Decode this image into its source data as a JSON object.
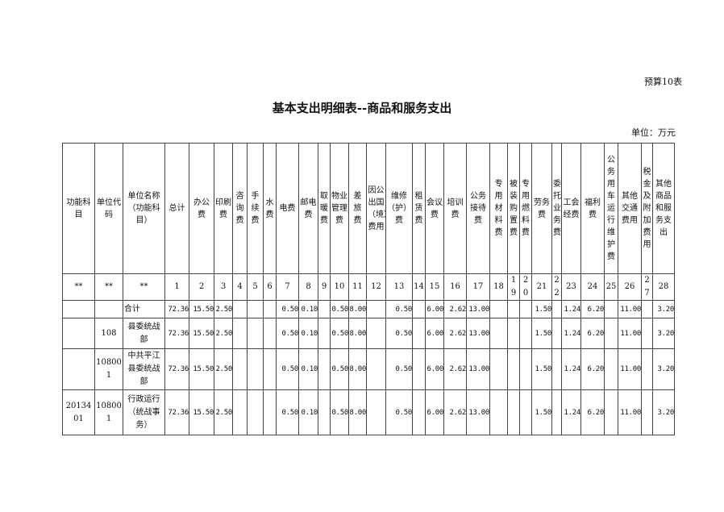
{
  "form_no": "预算10表",
  "title": "基本支出明细表--商品和服务支出",
  "unit": "单位：万元",
  "headers": [
    "功能科目",
    "单位代码",
    "单位名称（功能科目）",
    "总计",
    "办公费",
    "印刷费",
    "咨询费",
    "手续费",
    "水费",
    "电费",
    "邮电费",
    "取暖费",
    "物业管理费",
    "差旅费",
    "因公出国（境）费用",
    "维修（护）费",
    "租赁费",
    "会议费",
    "培训费",
    "公务接待费",
    "专用材料费",
    "被装购置费",
    "专用燃料费",
    "劳务费",
    "委托业务费",
    "工会经费",
    "福利费",
    "公务用车运行维护费",
    "其他交通费用",
    "税金及附加费用",
    "其他商品和服务支出"
  ],
  "index_row": [
    "**",
    "**",
    "**",
    "1",
    "2",
    "3",
    "4",
    "5",
    "6",
    "7",
    "8",
    "9",
    "10",
    "11",
    "12",
    "13",
    "14",
    "15",
    "16",
    "17",
    "18",
    "19",
    "20",
    "21",
    "22",
    "23",
    "24",
    "25",
    "26",
    "27",
    "28"
  ],
  "rows": [
    {
      "subject": "",
      "code": "",
      "name": "合计",
      "values": [
        "72.36",
        "15.50",
        "2.50",
        "",
        "",
        "",
        "0.50",
        "0.10",
        "",
        "0.50",
        "8.00",
        "",
        "0.50",
        "",
        "6.00",
        "2.62",
        "13.00",
        "",
        "",
        "",
        "1.50",
        "",
        "1.24",
        "6.20",
        "",
        "11.00",
        "",
        "3.20"
      ]
    },
    {
      "subject": "",
      "code": "108",
      "name": "县委统战部",
      "values": [
        "72.36",
        "15.50",
        "2.50",
        "",
        "",
        "",
        "0.50",
        "0.10",
        "",
        "0.50",
        "8.00",
        "",
        "0.50",
        "",
        "6.00",
        "2.62",
        "13.00",
        "",
        "",
        "",
        "1.50",
        "",
        "1.24",
        "6.20",
        "",
        "11.00",
        "",
        "3.20"
      ]
    },
    {
      "subject": "",
      "code": "108001",
      "name": "中共平江县委统战部",
      "values": [
        "72.36",
        "15.50",
        "2.50",
        "",
        "",
        "",
        "0.50",
        "0.10",
        "",
        "0.50",
        "8.00",
        "",
        "0.50",
        "",
        "6.00",
        "2.62",
        "13.00",
        "",
        "",
        "",
        "1.50",
        "",
        "1.24",
        "6.20",
        "",
        "11.00",
        "",
        "3.20"
      ]
    },
    {
      "subject": "2013401",
      "code": "108001",
      "name": "行政运行（统战事务）",
      "values": [
        "72.36",
        "15.50",
        "2.50",
        "",
        "",
        "",
        "0.50",
        "0.10",
        "",
        "0.50",
        "8.00",
        "",
        "0.50",
        "",
        "6.00",
        "2.62",
        "13.00",
        "",
        "",
        "",
        "1.50",
        "",
        "1.24",
        "6.20",
        "",
        "11.00",
        "",
        "3.20"
      ]
    }
  ]
}
